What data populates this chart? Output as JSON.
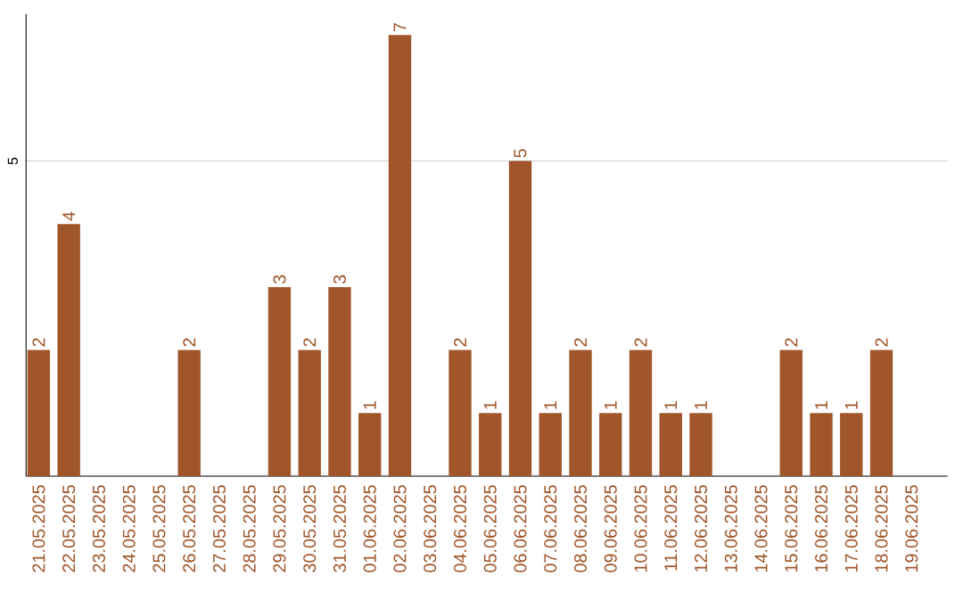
{
  "chart_data": {
    "type": "bar",
    "categories": [
      "21.05.2025",
      "22.05.2025",
      "23.05.2025",
      "24.05.2025",
      "25.05.2025",
      "26.05.2025",
      "27.05.2025",
      "28.05.2025",
      "29.05.2025",
      "30.05.2025",
      "31.05.2025",
      "01.06.2025",
      "02.06.2025",
      "03.06.2025",
      "04.06.2025",
      "05.06.2025",
      "06.06.2025",
      "07.06.2025",
      "08.06.2025",
      "09.06.2025",
      "10.06.2025",
      "11.06.2025",
      "12.06.2025",
      "13.06.2025",
      "14.06.2025",
      "15.06.2025",
      "16.06.2025",
      "17.06.2025",
      "18.06.2025",
      "19.06.2025"
    ],
    "values": [
      2,
      4,
      0,
      0,
      0,
      2,
      0,
      0,
      3,
      2,
      3,
      1,
      7,
      0,
      2,
      1,
      5,
      1,
      2,
      1,
      2,
      1,
      1,
      0,
      0,
      2,
      1,
      1,
      2,
      0
    ],
    "value_labels": [
      "2",
      "4",
      null,
      null,
      null,
      "2",
      null,
      null,
      "3",
      "2",
      "3",
      "1",
      "7",
      null,
      "2",
      "1",
      "5",
      "1",
      "2",
      "1",
      "2",
      "1",
      "1",
      null,
      null,
      "2",
      "1",
      "1",
      "2",
      null
    ],
    "color": "#a0562a",
    "ylim": [
      0,
      7.33
    ],
    "yticks": [
      5
    ],
    "grid": "y"
  }
}
